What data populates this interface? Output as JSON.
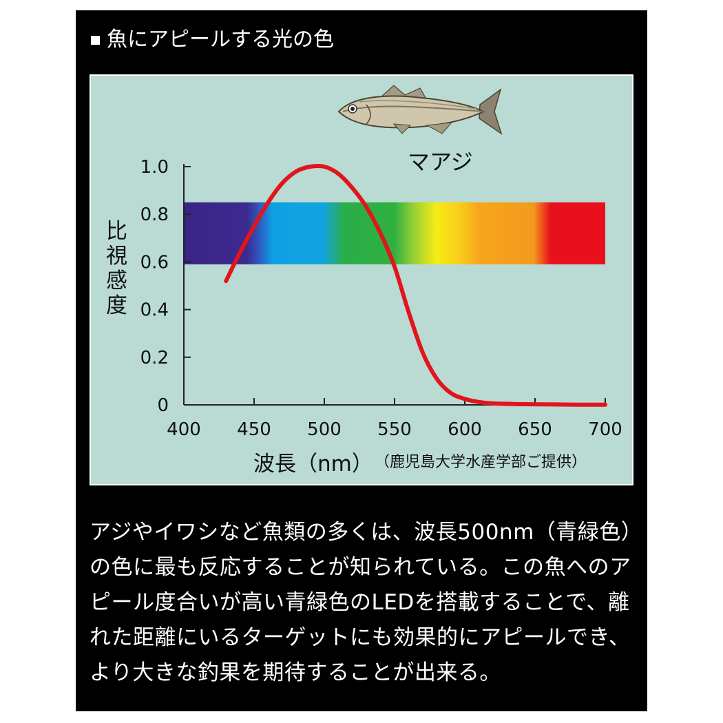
{
  "heading": "魚にアピールする光の色",
  "species_label": "マアジ",
  "colors": {
    "curve": "#e2141c",
    "panel": "#000000",
    "chart_bg": "#b9dbd4"
  },
  "icons": {
    "bullet": "square-bullet-icon",
    "fish": "fish-icon"
  },
  "chart_data": {
    "type": "line",
    "ylabel": "比視感度",
    "xlabel": "波長（nm）",
    "source_note": "（鹿児島大学水産学部ご提供）",
    "xlim": [
      400,
      700
    ],
    "ylim": [
      0,
      1.0
    ],
    "x_ticks": [
      400,
      450,
      500,
      550,
      600,
      650,
      700
    ],
    "y_ticks": [
      "0",
      "0.2",
      "0.4",
      "0.6",
      "0.8",
      "1.0"
    ],
    "y_tick_values": [
      0,
      0.2,
      0.4,
      0.6,
      0.8,
      1.0
    ],
    "spectrum_band": {
      "y_min": 0.59,
      "y_max": 0.85,
      "x_min": 400,
      "x_max": 700
    },
    "series": [
      {
        "x": [
          430,
          440,
          450,
          460,
          470,
          480,
          490,
          500,
          510,
          520,
          530,
          540,
          550,
          560,
          570,
          580,
          590,
          600,
          610,
          620,
          640,
          660,
          680,
          700
        ],
        "y": [
          0.52,
          0.64,
          0.75,
          0.85,
          0.93,
          0.98,
          1.0,
          1.0,
          0.97,
          0.91,
          0.83,
          0.72,
          0.58,
          0.39,
          0.22,
          0.11,
          0.05,
          0.025,
          0.012,
          0.006,
          0.003,
          0.002,
          0.001,
          0.001
        ]
      }
    ]
  },
  "caption": "アジやイワシなど魚類の多くは、波長500nm（青緑色）の色に最も反応することが知られている。この魚へのアピール度合いが高い青緑色のLEDを搭載することで、離れた距離にいるターゲットにも効果的にアピールでき、より大きな釣果を期待することが出来る。"
}
